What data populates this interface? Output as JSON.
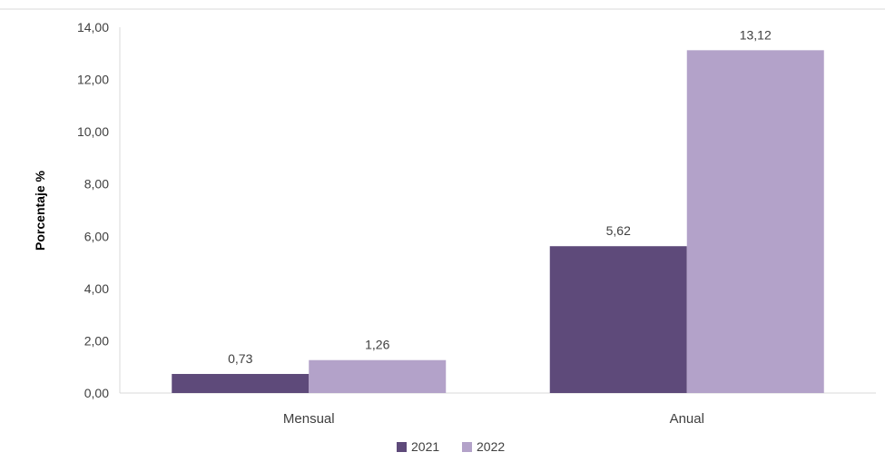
{
  "chart_data": {
    "type": "bar",
    "title": "",
    "xlabel": "",
    "ylabel": "Porcentaje %",
    "categories": [
      "Mensual",
      "Anual"
    ],
    "series": [
      {
        "name": "2021",
        "values": [
          0.73,
          5.62
        ],
        "value_labels": [
          "0,73",
          "5,62"
        ],
        "color": "#5e4a7a"
      },
      {
        "name": "2022",
        "values": [
          1.26,
          13.12
        ],
        "value_labels": [
          "1,26",
          "13,12"
        ],
        "color": "#b3a2c9"
      }
    ],
    "ylim": [
      0,
      14
    ],
    "y_ticks": [
      0,
      2,
      4,
      6,
      8,
      10,
      12,
      14
    ],
    "y_tick_labels": [
      "0,00",
      "2,00",
      "4,00",
      "6,00",
      "8,00",
      "10,00",
      "12,00",
      "14,00"
    ],
    "grid": false,
    "legend_position": "bottom"
  }
}
